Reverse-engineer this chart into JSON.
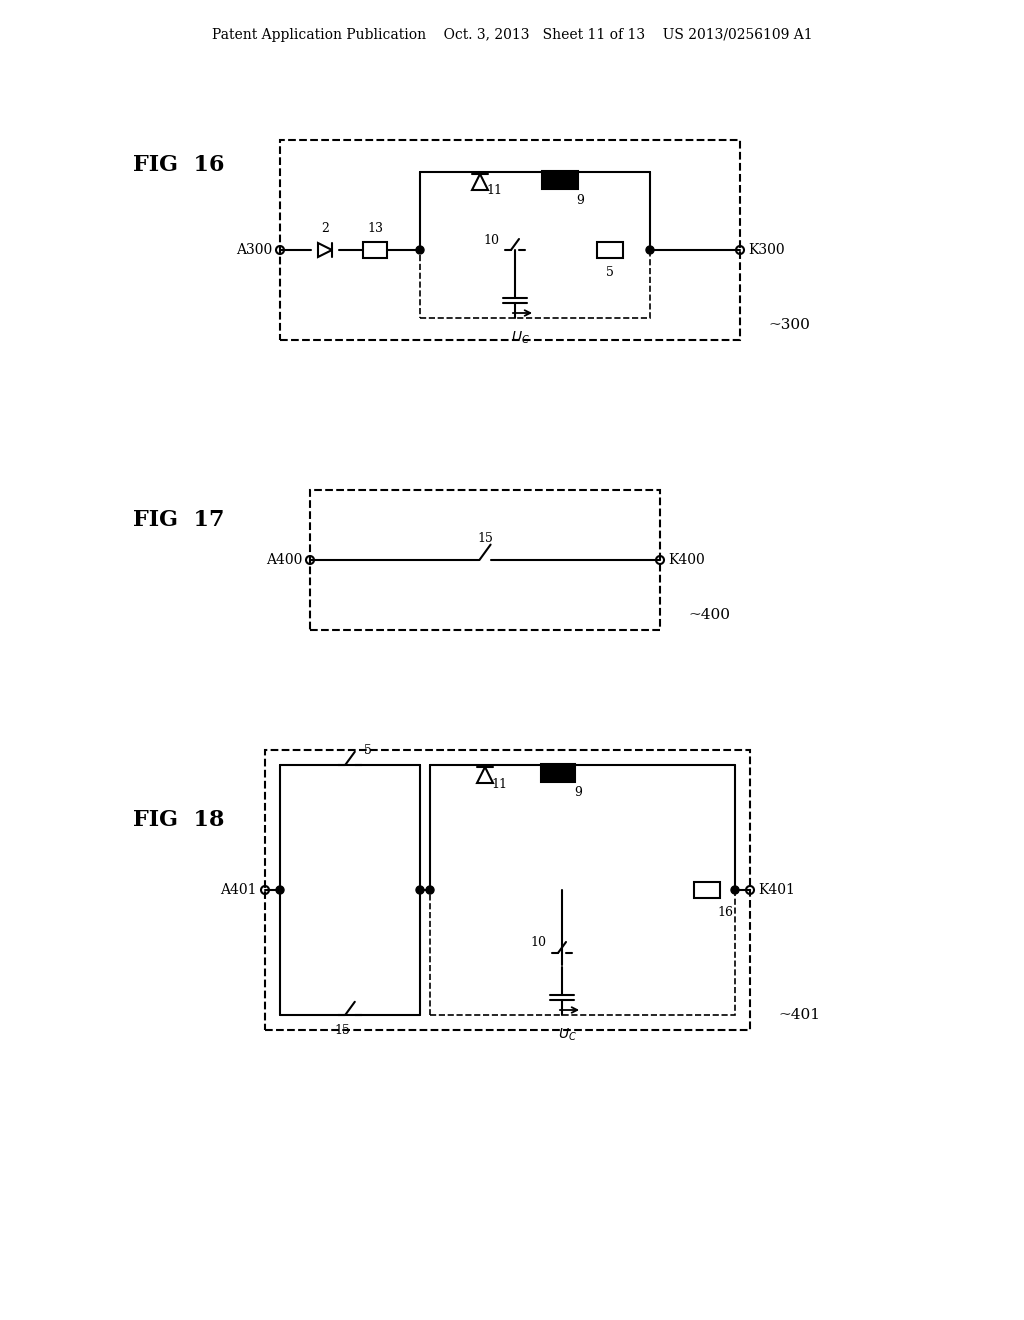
{
  "bg_color": "#ffffff",
  "line_color": "#000000",
  "header_text": "Patent Application Publication    Oct. 3, 2013   Sheet 11 of 13    US 2013/0256109 A1",
  "fig16_label": "FIG  16",
  "fig17_label": "FIG  17",
  "fig18_label": "FIG  18",
  "fig16_A": "A300",
  "fig16_K": "K300",
  "fig16_ref": "300",
  "fig17_A": "A400",
  "fig17_K": "K400",
  "fig17_ref": "400",
  "fig18_A": "A401",
  "fig18_K": "K401",
  "fig18_ref": "401"
}
